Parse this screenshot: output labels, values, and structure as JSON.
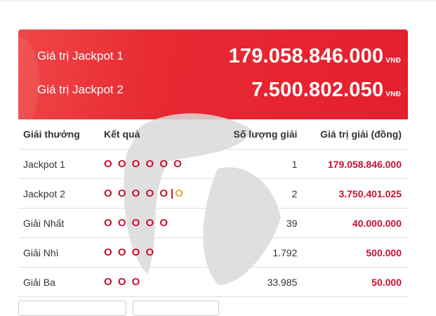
{
  "jackpots": [
    {
      "label": "Giá trị Jackpot 1",
      "value": "179.058.846.000",
      "unit": "VNĐ"
    },
    {
      "label": "Giá trị Jackpot 2",
      "value": "7.500.802.050",
      "unit": "VNĐ"
    }
  ],
  "table": {
    "headers": [
      "Giải thưởng",
      "Kết quả",
      "Số lượng giải",
      "Giá trị giải (đồng)"
    ],
    "rows": [
      {
        "prize": "Jackpot 1",
        "result": "O O O O O O",
        "special": "",
        "count": "1",
        "value": "179.058.846.000"
      },
      {
        "prize": "Jackpot 2",
        "result": "O O O O O",
        "special": "O",
        "count": "2",
        "value": "3.750.401.025"
      },
      {
        "prize": "Giải Nhất",
        "result": "O O O O O",
        "special": "",
        "count": "39",
        "value": "40.000.000"
      },
      {
        "prize": "Giải Nhì",
        "result": "O O O O",
        "special": "",
        "count": "1.792",
        "value": "500.000"
      },
      {
        "prize": "Giải Ba",
        "result": "O O O",
        "special": "",
        "count": "33.985",
        "value": "50.000"
      }
    ]
  },
  "colors": {
    "banner": "#e41f2e",
    "accent": "#c8102e",
    "special": "#e8a33a"
  }
}
